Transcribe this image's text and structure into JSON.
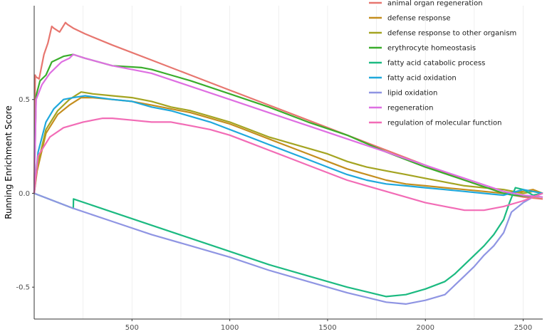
{
  "chart_data": {
    "type": "line",
    "title": "",
    "xlabel": "",
    "ylabel": "Running Enrichment Score",
    "xlim": [
      0,
      2600
    ],
    "ylim": [
      -0.67,
      1.0
    ],
    "x_ticks": [
      500,
      1000,
      1500,
      2000,
      2500
    ],
    "y_ticks": [
      -0.5,
      0.0,
      0.5
    ],
    "y_tick_labels": [
      "-0.5",
      "0.0",
      "0.5"
    ],
    "legend_position": "top-right",
    "series": [
      {
        "name": "animal organ regeneration",
        "color": "#e7766f",
        "x": [
          0,
          5,
          10,
          25,
          50,
          70,
          90,
          100,
          130,
          160,
          170,
          200,
          260,
          400,
          600,
          800,
          1000,
          1200,
          1400,
          1600,
          1800,
          2000,
          2200,
          2400,
          2500,
          2600
        ],
        "y": [
          0.0,
          0.63,
          0.62,
          0.61,
          0.74,
          0.8,
          0.89,
          0.88,
          0.86,
          0.91,
          0.9,
          0.88,
          0.85,
          0.79,
          0.71,
          0.63,
          0.55,
          0.47,
          0.39,
          0.31,
          0.23,
          0.15,
          0.07,
          0.0,
          -0.02,
          -0.03
        ]
      },
      {
        "name": "defense response",
        "color": "#c48e1e",
        "x": [
          0,
          15,
          60,
          120,
          180,
          240,
          300,
          400,
          500,
          600,
          700,
          800,
          900,
          1000,
          1100,
          1200,
          1300,
          1400,
          1500,
          1600,
          1700,
          1800,
          1900,
          2000,
          2100,
          2200,
          2300,
          2400,
          2500,
          2550,
          2600
        ],
        "y": [
          0.0,
          0.12,
          0.32,
          0.42,
          0.47,
          0.51,
          0.51,
          0.5,
          0.49,
          0.47,
          0.45,
          0.43,
          0.4,
          0.37,
          0.33,
          0.29,
          0.25,
          0.21,
          0.17,
          0.13,
          0.1,
          0.07,
          0.05,
          0.04,
          0.03,
          0.02,
          0.01,
          0.0,
          0.01,
          0.02,
          0.0
        ]
      },
      {
        "name": "defense response to other organism",
        "color": "#a4a421",
        "x": [
          0,
          15,
          60,
          120,
          180,
          240,
          300,
          400,
          500,
          600,
          700,
          800,
          900,
          1000,
          1100,
          1200,
          1300,
          1400,
          1500,
          1600,
          1700,
          1800,
          1900,
          2000,
          2100,
          2200,
          2300,
          2400,
          2500,
          2550,
          2600
        ],
        "y": [
          0.0,
          0.14,
          0.34,
          0.44,
          0.5,
          0.54,
          0.53,
          0.52,
          0.51,
          0.49,
          0.46,
          0.44,
          0.41,
          0.38,
          0.34,
          0.3,
          0.27,
          0.24,
          0.21,
          0.17,
          0.14,
          0.12,
          0.1,
          0.08,
          0.06,
          0.04,
          0.03,
          0.02,
          0.0,
          0.01,
          0.0
        ]
      },
      {
        "name": "erythrocyte homeostasis",
        "color": "#3aad2c",
        "x": [
          0,
          10,
          30,
          60,
          90,
          110,
          150,
          200,
          260,
          400,
          550,
          600,
          700,
          800,
          1000,
          1200,
          1400,
          1600,
          1800,
          2000,
          2200,
          2400,
          2450,
          2600
        ],
        "y": [
          0.0,
          0.52,
          0.6,
          0.63,
          0.7,
          0.71,
          0.73,
          0.74,
          0.72,
          0.68,
          0.67,
          0.66,
          0.63,
          0.6,
          0.53,
          0.46,
          0.38,
          0.31,
          0.22,
          0.14,
          0.07,
          0.0,
          -0.01,
          -0.02
        ]
      },
      {
        "name": "fatty acid catabolic process",
        "color": "#1cba81",
        "x": [
          0,
          200,
          201,
          400,
          600,
          800,
          1000,
          1200,
          1400,
          1600,
          1800,
          1900,
          2000,
          2100,
          2150,
          2200,
          2250,
          2300,
          2350,
          2400,
          2430,
          2460,
          2500,
          2550,
          2600
        ],
        "y": [
          0.0,
          -0.08,
          -0.03,
          -0.1,
          -0.17,
          -0.24,
          -0.31,
          -0.38,
          -0.44,
          -0.5,
          -0.55,
          -0.54,
          -0.51,
          -0.47,
          -0.43,
          -0.38,
          -0.33,
          -0.28,
          -0.22,
          -0.14,
          -0.05,
          0.03,
          0.02,
          -0.01,
          0.0
        ]
      },
      {
        "name": "fatty acid oxidation",
        "color": "#1fa8dc",
        "x": [
          0,
          20,
          60,
          100,
          150,
          200,
          260,
          400,
          500,
          600,
          700,
          800,
          900,
          1000,
          1100,
          1200,
          1300,
          1400,
          1500,
          1600,
          1700,
          1800,
          1900,
          2000,
          2100,
          2200,
          2300,
          2400,
          2500,
          2550,
          2600
        ],
        "y": [
          0.0,
          0.22,
          0.38,
          0.45,
          0.5,
          0.51,
          0.52,
          0.5,
          0.49,
          0.46,
          0.44,
          0.41,
          0.38,
          0.34,
          0.3,
          0.26,
          0.22,
          0.18,
          0.14,
          0.1,
          0.07,
          0.05,
          0.04,
          0.03,
          0.02,
          0.01,
          0.0,
          -0.01,
          0.02,
          0.01,
          0.0
        ]
      },
      {
        "name": "lipid oxidation",
        "color": "#8f95e3",
        "x": [
          0,
          200,
          400,
          600,
          800,
          1000,
          1200,
          1400,
          1600,
          1800,
          1900,
          2000,
          2100,
          2150,
          2200,
          2250,
          2300,
          2350,
          2400,
          2440,
          2500,
          2550,
          2600
        ],
        "y": [
          0.0,
          -0.08,
          -0.15,
          -0.22,
          -0.28,
          -0.34,
          -0.41,
          -0.47,
          -0.53,
          -0.58,
          -0.59,
          -0.57,
          -0.54,
          -0.49,
          -0.44,
          -0.39,
          -0.33,
          -0.28,
          -0.21,
          -0.1,
          -0.05,
          -0.02,
          0.0
        ]
      },
      {
        "name": "regeneration",
        "color": "#de6fe2",
        "x": [
          0,
          10,
          40,
          80,
          100,
          140,
          180,
          200,
          260,
          400,
          500,
          600,
          800,
          1000,
          1200,
          1400,
          1600,
          1800,
          2000,
          2200,
          2400,
          2500,
          2600
        ],
        "y": [
          0.0,
          0.5,
          0.58,
          0.64,
          0.66,
          0.7,
          0.72,
          0.74,
          0.72,
          0.68,
          0.66,
          0.64,
          0.57,
          0.5,
          0.43,
          0.36,
          0.29,
          0.22,
          0.15,
          0.08,
          0.01,
          -0.01,
          -0.02
        ]
      },
      {
        "name": "regulation of molecular function",
        "color": "#f26cb6",
        "x": [
          0,
          20,
          80,
          150,
          250,
          350,
          400,
          500,
          600,
          700,
          800,
          900,
          1000,
          1100,
          1200,
          1300,
          1400,
          1500,
          1600,
          1700,
          1800,
          1900,
          2000,
          2100,
          2200,
          2300,
          2400,
          2500,
          2550,
          2600
        ],
        "y": [
          0.0,
          0.2,
          0.3,
          0.35,
          0.38,
          0.4,
          0.4,
          0.39,
          0.38,
          0.38,
          0.36,
          0.34,
          0.31,
          0.27,
          0.23,
          0.19,
          0.15,
          0.11,
          0.07,
          0.04,
          0.01,
          -0.02,
          -0.05,
          -0.07,
          -0.09,
          -0.09,
          -0.07,
          -0.04,
          -0.02,
          0.0
        ]
      }
    ]
  }
}
